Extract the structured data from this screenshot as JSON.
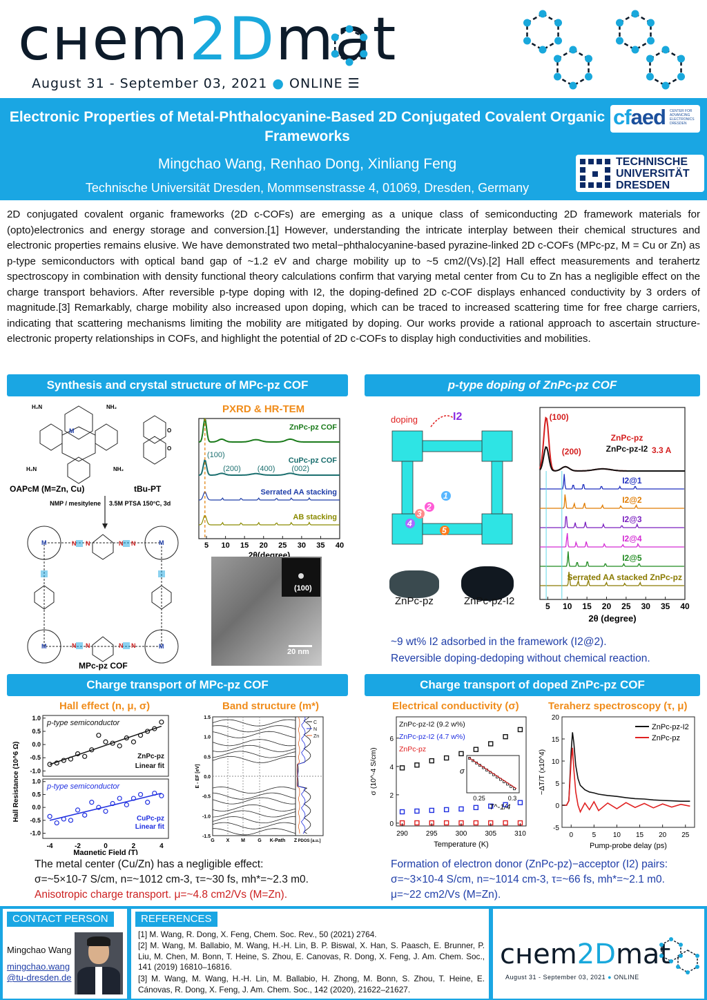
{
  "header": {
    "logo_left": "cнem",
    "logo_accent": "2D",
    "logo_right": "mat",
    "dates": "August 31 - September 03, 2021",
    "online": "ONLINE",
    "title": "Electronic Properties of Metal-Phthalocyanine-Based 2D Conjugated Covalent Organic Frameworks",
    "authors": "Mingchao Wang, Renhao Dong, Xinliang Feng",
    "affiliation": "Technische Universität Dresden, Mommsenstrasse 4, 01069, Dresden, Germany",
    "cfaed_word_a": "cf",
    "cfaed_word_b": "aed",
    "cfaed_small": "CENTER FOR ADVANCING ELECTRONICS DRESDEN",
    "tud_text": "TECHNISCHE UNIVERSITÄT DRESDEN"
  },
  "abstract": "2D conjugated covalent organic frameworks (2D c-COFs) are emerging as a unique class of semiconducting 2D framework materials for (opto)electronics and energy storage and conversion.[1] However, understanding the intricate interplay between their chemical structures and electronic properties remains elusive. We have demonstrated two metal−phthalocyanine-based pyrazine-linked 2D c-COFs (MPc-pz, M = Cu or Zn) as p-type semiconductors with optical band gap of ~1.2 eV and charge mobility up to ~5 cm2/(Vs).[2] Hall effect measurements and terahertz spectroscopy in combination with density functional theory calculations confirm that varying metal center from Cu to Zn has a negligible effect on the charge transport behaviors. After reversible p-type doping with I2, the doping-defined 2D c-COF displays enhanced conductivity by 3 orders of magnitude.[3] Remarkably, charge mobility also increased upon doping, which can be traced to increased scattering time for free charge carriers, indicating that scattering mechanisms limiting the mobility are mitigated by doping. Our works provide a rational approach to ascertain structure-electronic property relationships in COFs, and highlight the potential of 2D c-COFs to display high conductivities and mobilities.",
  "sections": {
    "synthesis": {
      "header": "Synthesis and crystal structure of MPc-pz COF",
      "subtitle": "PXRD & HR-TEM",
      "oapc": "OAPcM (M=Zn, Cu)",
      "bupt": "tBu-PT",
      "cond_left": "NMP / mesitylene",
      "cond_right": "3.5M PTSA 150°C, 3d",
      "product": "MPc-pz COF",
      "scale_bar": "20 nm",
      "fft_label": "(100)"
    },
    "doping": {
      "header": "p-type doping of ZnPc-pz COF",
      "doping_label": "doping",
      "i2_label": "I2",
      "photo_left": "ZnPc-pz",
      "photo_right": "ZnPc-pz-I2",
      "caption1": "~9 wt% I2 adsorbed in the framework (I2@2).",
      "caption2": "Reversible doping-dedoping without chemical reaction."
    },
    "transport": {
      "header": "Charge transport of MPc-pz COF",
      "hall_title": "Hall effect (n, μ, σ)",
      "band_title": "Band structure (m*)",
      "caption1": "The metal center (Cu/Zn) has a negligible effect:",
      "caption2": "σ=~5×10-7 S/cm, n=~1012 cm-3, τ=~30 fs, mh*=~2.3 m0.",
      "caption3": "Anisotropic charge transport. μ=~4.8 cm2/Vs (M=Zn)."
    },
    "doped_transport": {
      "header": "Charge transport of doped ZnPc-pz COF",
      "cond_title": "Electrical conductivity (σ)",
      "thz_title": "Teraherz spectroscopy (τ, μ)",
      "caption1": "Formation of electron donor (ZnPc-pz)−acceptor (I2) pairs:",
      "caption2": "σ=~3×10-4 S/cm, n=~1014 cm-3, τ=~66 fs, mh*=~2.1 m0.",
      "caption3": "μ=~22 cm2/Vs (M=Zn)."
    }
  },
  "contact": {
    "tab": "CONTACT PERSON",
    "name": "Mingchao Wang",
    "email1": "mingchao.wang",
    "email2": "@tu-dresden.de"
  },
  "references": {
    "tab": "REFERENCES",
    "items": [
      "[1] M. Wang, R. Dong, X. Feng, Chem. Soc. Rev., 50 (2021) 2764.",
      "[2] M. Wang, M. Ballabio, M. Wang, H.-H. Lin, B. P. Biswal, X. Han, S. Paasch, E. Brunner, P. Liu, M. Chen, M. Bonn, T. Heine, S. Zhou, E. Canovas, R. Dong, X. Feng, J. Am. Chem. Soc., 141 (2019) 16810–16816.",
      "[3] M. Wang, M. Wang, H.-H. Lin, M. Ballabio, H. Zhong, M. Bonn, S. Zhou, T. Heine, E. Cánovas, R. Dong, X. Feng, J. Am. Chem. Soc., 142 (2020), 21622–21627."
    ]
  },
  "colors": {
    "accent": "#1aa6e3",
    "dark": "#0d1b2a",
    "orange": "#f08c1a",
    "red": "#cc1f1f",
    "blue": "#1f3ea8"
  },
  "chart_data": [
    {
      "type": "line",
      "id": "pxrd",
      "title": "PXRD & HR-TEM",
      "xlabel": "2θ(degree)",
      "xlim": [
        3,
        40
      ],
      "xticks": [
        5,
        10,
        15,
        20,
        25,
        30,
        35,
        40
      ],
      "series": [
        {
          "name": "ZnPc-pz COF",
          "color": "#1a7a1a"
        },
        {
          "name": "CuPc-pz COF",
          "color": "#1a6e6e"
        },
        {
          "name": "Serrated AA stacking",
          "color": "#1f3ea8"
        },
        {
          "name": "AB stacking",
          "color": "#8a8a00"
        }
      ],
      "peak_labels": [
        "(100)",
        "(200)",
        "(400)",
        "(002)"
      ]
    },
    {
      "type": "line",
      "id": "doped_pxrd",
      "xlabel": "2θ (degree)",
      "xlim": [
        3,
        40
      ],
      "xticks": [
        5,
        10,
        15,
        20,
        25,
        30,
        35,
        40
      ],
      "series": [
        {
          "name": "ZnPc-pz",
          "color": "#d41e1e"
        },
        {
          "name": "ZnPc-pz-I2",
          "color": "#111111"
        },
        {
          "name": "I2@1",
          "color": "#1f2fbf"
        },
        {
          "name": "I2@2",
          "color": "#e07b00"
        },
        {
          "name": "I2@3",
          "color": "#7a1fbf"
        },
        {
          "name": "I2@4",
          "color": "#d42ad4"
        },
        {
          "name": "I2@5",
          "color": "#1f8a1f"
        },
        {
          "name": "Serrated AA stacked ZnPc-pz",
          "color": "#8a7a00"
        }
      ],
      "peak_labels": [
        "(100)",
        "(200)"
      ],
      "annotation": "3.3 A"
    },
    {
      "type": "scatter",
      "id": "hall",
      "xlabel": "Magnetic Field (T)",
      "ylabel": "Hall Resistance (10^6 Ω)",
      "xlim": [
        -4.5,
        4.5
      ],
      "ylim": [
        -1.2,
        1.1
      ],
      "xticks": [
        -4,
        -2,
        0,
        2,
        4
      ],
      "yticks": [
        -1.0,
        -0.5,
        0.0,
        0.5,
        1.0
      ],
      "panels": [
        {
          "label": "p-type semiconductor",
          "legend": [
            "ZnPc-pz",
            "Linear fit"
          ],
          "color": "#111111",
          "x": [
            -4,
            -3.5,
            -3,
            -2.5,
            -2,
            -1.5,
            -1,
            -0.5,
            0,
            0.5,
            1,
            1.5,
            2,
            2.5,
            3,
            3.5,
            4
          ],
          "y": [
            -0.75,
            -0.7,
            -0.6,
            -0.55,
            -0.35,
            -0.45,
            -0.2,
            0.35,
            0.1,
            0.05,
            -0.05,
            0.25,
            0.1,
            0.35,
            0.5,
            0.6,
            0.85
          ]
        },
        {
          "label": "p-type semiconductor",
          "legend": [
            "CuPc-pz",
            "Linear fit"
          ],
          "color": "#1f2fe0",
          "x": [
            -4,
            -3.5,
            -3,
            -2.5,
            -2,
            -1.5,
            -1,
            -0.5,
            0,
            0.5,
            1,
            1.5,
            2,
            2.5,
            3,
            3.5,
            4
          ],
          "y": [
            -0.35,
            -0.6,
            -0.45,
            -0.5,
            -0.1,
            -0.3,
            0.2,
            0.0,
            -0.15,
            0.15,
            0.35,
            0.1,
            0.35,
            0.5,
            0.2,
            0.55,
            0.45
          ]
        }
      ]
    },
    {
      "type": "line",
      "id": "band",
      "ylabel": "E - EF [eV]",
      "xlabel": "K-Path",
      "xticklabels": [
        "G",
        "X",
        "M",
        "G",
        "K-Path",
        "Z"
      ],
      "ylim": [
        -1.5,
        1.5
      ],
      "yticks": [
        1.5,
        1.0,
        0.5,
        0.0,
        -0.5,
        -1.0,
        -1.5
      ],
      "pdos_label": "PDOS [a.u.]",
      "pdos_series": [
        "C",
        "N",
        "Zn"
      ]
    },
    {
      "type": "scatter",
      "id": "conductivity",
      "xlabel": "Temperature (K)",
      "ylabel": "σ (10^-4 S/cm)",
      "xlim": [
        289,
        311
      ],
      "ylim": [
        -0.2,
        7.5
      ],
      "xticks": [
        290,
        295,
        300,
        305,
        310
      ],
      "yticks": [
        0,
        2,
        4,
        6
      ],
      "series": [
        {
          "name": "ZnPc-pz-I2 (9.2 w%)",
          "color": "#111111",
          "x": [
            290,
            292.5,
            295,
            297.5,
            300,
            302.5,
            305,
            307.5,
            310
          ],
          "y": [
            3.9,
            4.1,
            4.4,
            4.6,
            4.9,
            5.2,
            5.6,
            6.1,
            6.6
          ]
        },
        {
          "name": "ZnPc-pz-I2 (4.7 w%)",
          "color": "#1f2fe0",
          "x": [
            290,
            292.5,
            295,
            297.5,
            300,
            302.5,
            305,
            307.5,
            310
          ],
          "y": [
            0.8,
            0.85,
            0.9,
            0.95,
            1.0,
            1.1,
            1.2,
            1.3,
            1.45
          ]
        },
        {
          "name": "ZnPc-pz",
          "color": "#e02020",
          "x": [
            290,
            292.5,
            295,
            297.5,
            300,
            302.5,
            305,
            307.5,
            310
          ],
          "y": [
            0.02,
            0.02,
            0.02,
            0.02,
            0.02,
            0.02,
            0.02,
            0.02,
            0.02
          ]
        }
      ],
      "inset": {
        "xlabel": "T^-1/4",
        "ylabel": "σ",
        "xticks": [
          0.25,
          0.3
        ]
      }
    },
    {
      "type": "line",
      "id": "thz",
      "xlabel": "Pump-probe delay (ps)",
      "ylabel": "−ΔT/T (x10^4)",
      "xlim": [
        -2,
        27
      ],
      "ylim": [
        -5,
        20
      ],
      "xticks": [
        0,
        5,
        10,
        15,
        20,
        25
      ],
      "yticks": [
        -5,
        0,
        5,
        10,
        15,
        20
      ],
      "series": [
        {
          "name": "ZnPc-pz-I2",
          "color": "#111111",
          "x": [
            -2,
            -1,
            -0.5,
            0,
            0.3,
            0.6,
            1,
            1.5,
            2,
            3,
            4,
            5,
            6,
            8,
            10,
            12,
            14,
            16,
            18,
            20,
            22,
            24,
            26
          ],
          "y": [
            0,
            0,
            1,
            12,
            16.5,
            14,
            9,
            6,
            4.5,
            3.5,
            3,
            2.8,
            2.5,
            2.2,
            2,
            1.7,
            1.5,
            1.4,
            1.2,
            1.1,
            1,
            0.9,
            0.9
          ]
        },
        {
          "name": "ZnPc-pz",
          "color": "#e02020",
          "x": [
            -2,
            -1,
            -0.5,
            0,
            0.3,
            0.6,
            1,
            1.5,
            2,
            3,
            4,
            5,
            6,
            8,
            10,
            12,
            14,
            16,
            18,
            20,
            22,
            24,
            26
          ],
          "y": [
            0,
            0,
            1,
            10,
            13,
            8,
            3,
            0,
            -1.5,
            0.5,
            -1,
            0.8,
            -1.2,
            0.5,
            -0.8,
            0.6,
            -0.5,
            0.4,
            -0.6,
            0.3,
            -0.4,
            0.2,
            -0.2
          ]
        }
      ]
    }
  ]
}
